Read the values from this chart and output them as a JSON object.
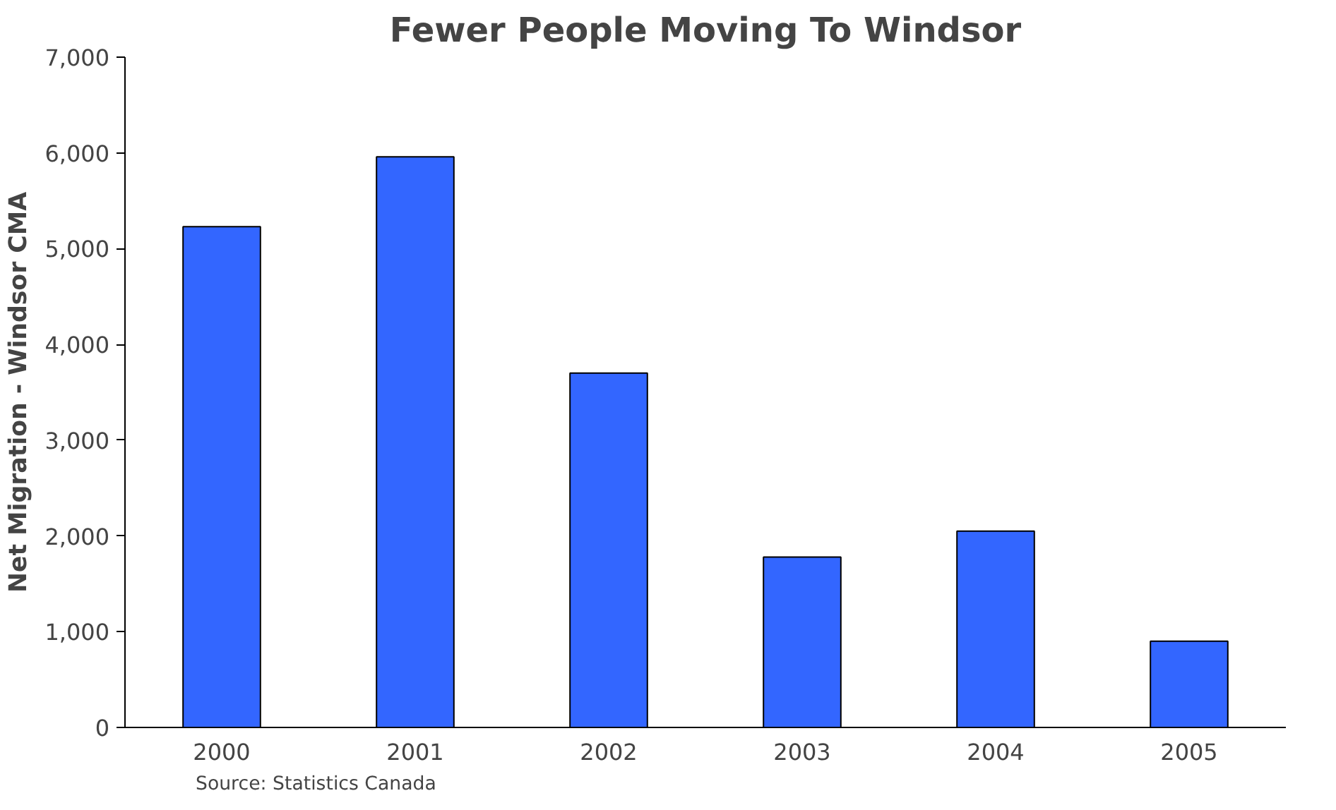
{
  "chart_data": {
    "type": "bar",
    "title": "Fewer People Moving To Windsor",
    "ylabel": "Net Migration - Windsor CMA",
    "categories": [
      "2000",
      "2001",
      "2002",
      "2003",
      "2004",
      "2005"
    ],
    "values": [
      5230,
      5960,
      3700,
      1780,
      2050,
      900
    ],
    "color": "#3366ff",
    "ylim": [
      0,
      7000
    ],
    "yticks": [
      {
        "value": 0,
        "label": "0"
      },
      {
        "value": 1000,
        "label": "1,000"
      },
      {
        "value": 2000,
        "label": "2,000"
      },
      {
        "value": 3000,
        "label": "3,000"
      },
      {
        "value": 4000,
        "label": "4,000"
      },
      {
        "value": 5000,
        "label": "5,000"
      },
      {
        "value": 6000,
        "label": "6,000"
      },
      {
        "value": 7000,
        "label": "7,000"
      }
    ],
    "grid": false,
    "annotations": [
      "Source: Statistics  Canada"
    ]
  }
}
